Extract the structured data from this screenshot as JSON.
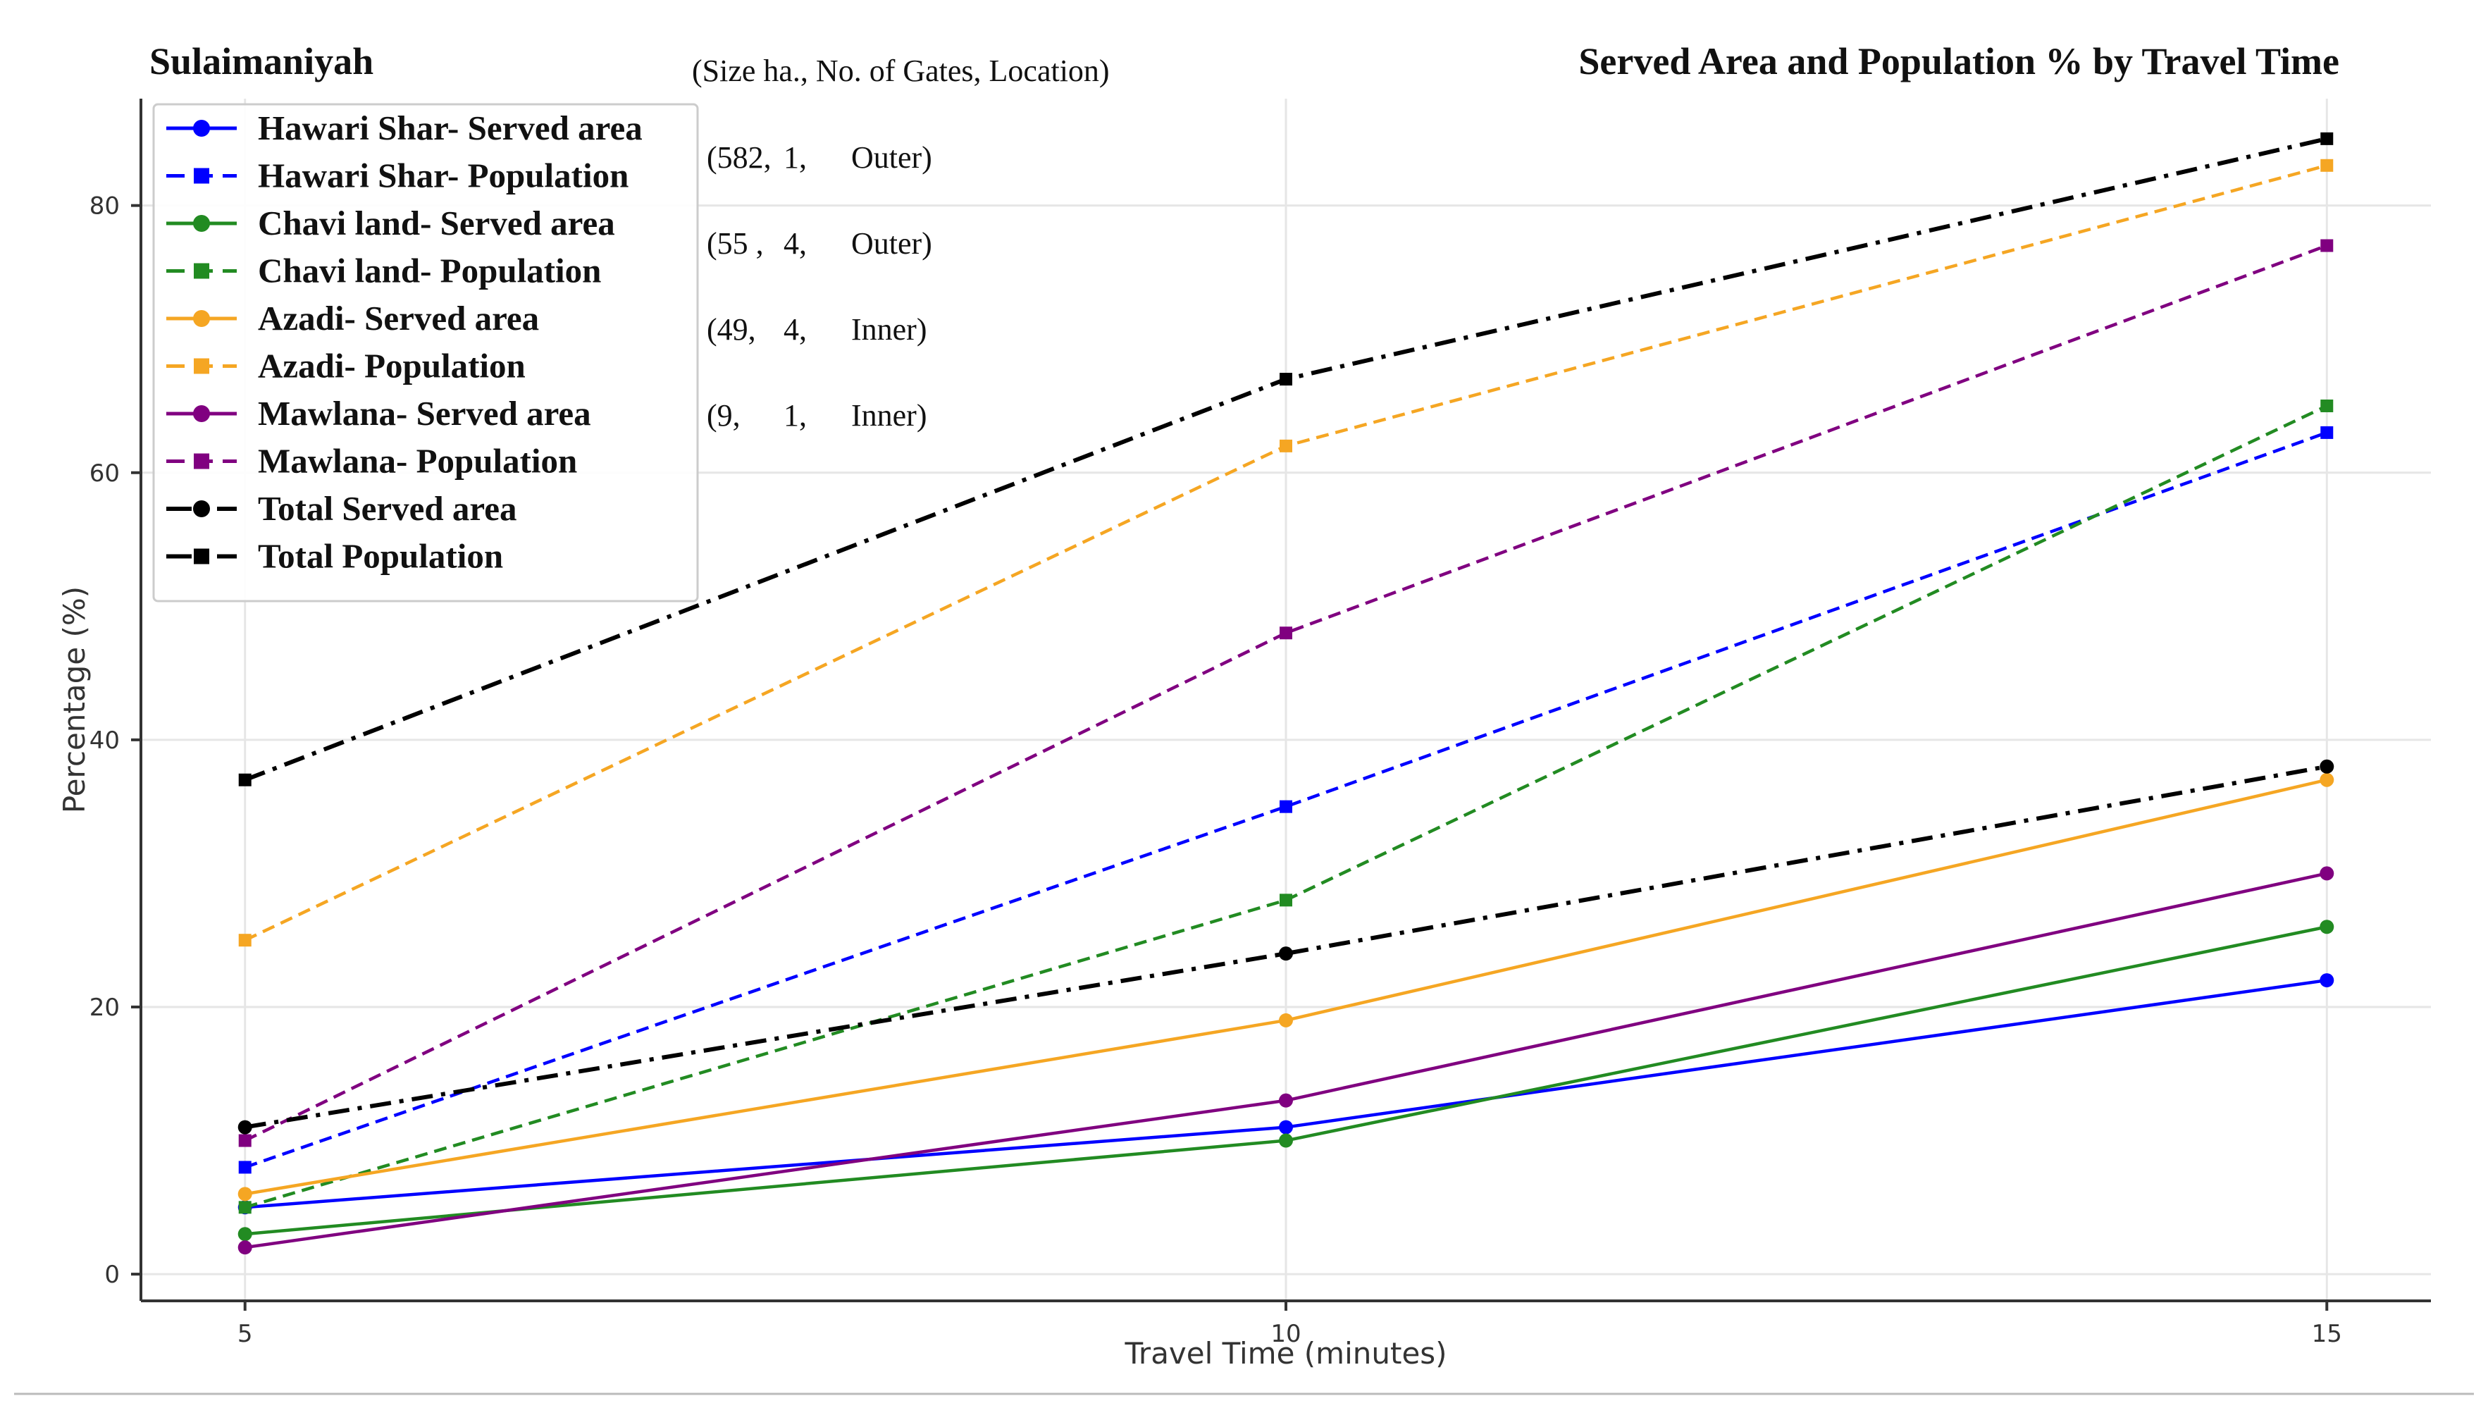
{
  "chart_data": {
    "type": "line",
    "title": "Served Area and Population % by Travel Time",
    "city_label": "Sulaimaniyah",
    "xlabel": "Travel Time (minutes)",
    "ylabel": "Percentage (%)",
    "x": [
      5,
      10,
      15
    ],
    "x_ticks": [
      "5",
      "10",
      "15"
    ],
    "y_ticks": [
      "0",
      "20",
      "40",
      "60",
      "80"
    ],
    "ylim": [
      -2,
      88
    ],
    "xlim": [
      4.5,
      15.5
    ],
    "grid": true,
    "legend_position": "top-left",
    "series": [
      {
        "name": "Hawari Shar- Served area",
        "values": [
          5,
          11,
          22
        ],
        "color": "#0000ff",
        "style": "solid",
        "marker": "circle"
      },
      {
        "name": "Hawari Shar- Population",
        "values": [
          8,
          35,
          63
        ],
        "color": "#0000ff",
        "style": "dashed",
        "marker": "square"
      },
      {
        "name": "Chavi land- Served area",
        "values": [
          3,
          10,
          26
        ],
        "color": "#228b22",
        "style": "solid",
        "marker": "circle"
      },
      {
        "name": "Chavi land- Population",
        "values": [
          5,
          28,
          65
        ],
        "color": "#228b22",
        "style": "dashed",
        "marker": "square"
      },
      {
        "name": "Azadi- Served area",
        "values": [
          6,
          19,
          37
        ],
        "color": "#f5a623",
        "style": "solid",
        "marker": "circle"
      },
      {
        "name": "Azadi- Population",
        "values": [
          25,
          62,
          83
        ],
        "color": "#f5a623",
        "style": "dashed",
        "marker": "square"
      },
      {
        "name": "Mawlana- Served area",
        "values": [
          2,
          13,
          30
        ],
        "color": "#800080",
        "style": "solid",
        "marker": "circle"
      },
      {
        "name": "Mawlana- Population",
        "values": [
          10,
          48,
          77
        ],
        "color": "#800080",
        "style": "dashed",
        "marker": "square"
      },
      {
        "name": "Total Served area",
        "values": [
          11,
          24,
          38
        ],
        "color": "#000000",
        "style": "dashdot",
        "marker": "circle"
      },
      {
        "name": "Total Population",
        "values": [
          37,
          67,
          85
        ],
        "color": "#000000",
        "style": "dashdot",
        "marker": "square"
      }
    ],
    "annotations": {
      "header": "(Size ha., No. of Gates, Location)",
      "rows": [
        [
          "(582,",
          "1,",
          "Outer)"
        ],
        [
          "(55 ,",
          "4,",
          "Outer)"
        ],
        [
          "(49,",
          "4,",
          "Inner)"
        ],
        [
          "(9,",
          "1,",
          "Inner)"
        ]
      ]
    }
  }
}
